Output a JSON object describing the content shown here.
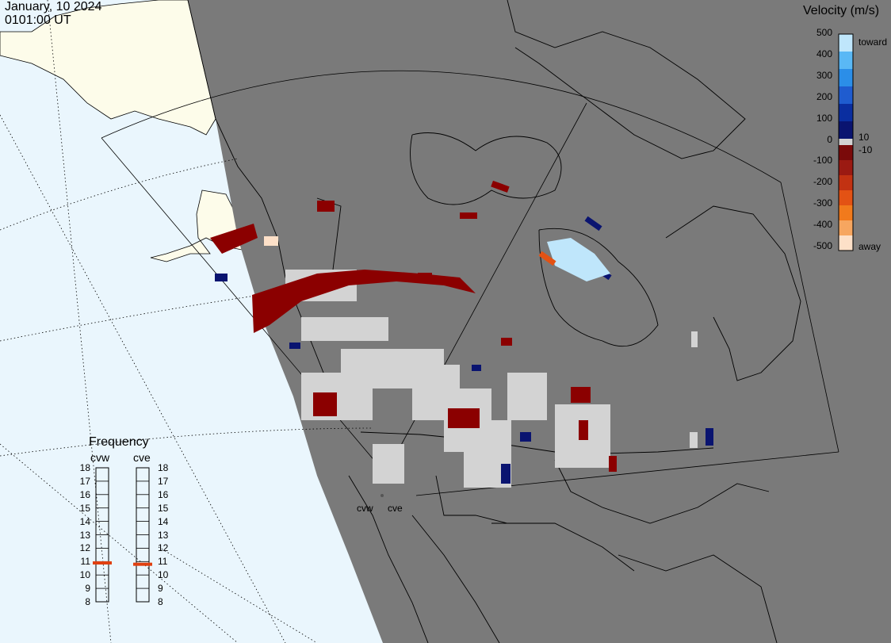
{
  "header": {
    "date": "January, 10 2024",
    "time": "0101:00 UT"
  },
  "legend": {
    "title": "Velocity (m/s)",
    "ticks": [
      "500",
      "400",
      "300",
      "200",
      "100",
      "0",
      "-100",
      "-200",
      "-300",
      "-400",
      "-500"
    ],
    "side_labels": {
      "toward": "toward",
      "away": "away",
      "pos_thresh": "10",
      "neg_thresh": "-10"
    },
    "colors": [
      "#fde0c8",
      "#f6a660",
      "#f17a1c",
      "#e35214",
      "#c23212",
      "#9b1a12",
      "#7a0a0a",
      "#0a1470",
      "#0a2ea0",
      "#1f5ccf",
      "#2b8ee8",
      "#5ab8f5",
      "#bfe6fb"
    ]
  },
  "frequency": {
    "title": "Frequency",
    "radars": [
      "cvw",
      "cve"
    ],
    "scale": [
      "18",
      "17",
      "16",
      "15",
      "14",
      "13",
      "12",
      "11",
      "10",
      "9",
      "8"
    ],
    "unit_labels": {
      "left": "cvw",
      "right": "cve"
    },
    "cvw_mhz": 10.9,
    "cve_mhz": 10.8,
    "marker_color": "#e04010"
  },
  "map": {
    "ocean_color": "#eaf6fd",
    "land_color": "#fdfcea",
    "night_color": "#7a7a7a",
    "radar_sites": [
      "cvw",
      "cve"
    ]
  }
}
